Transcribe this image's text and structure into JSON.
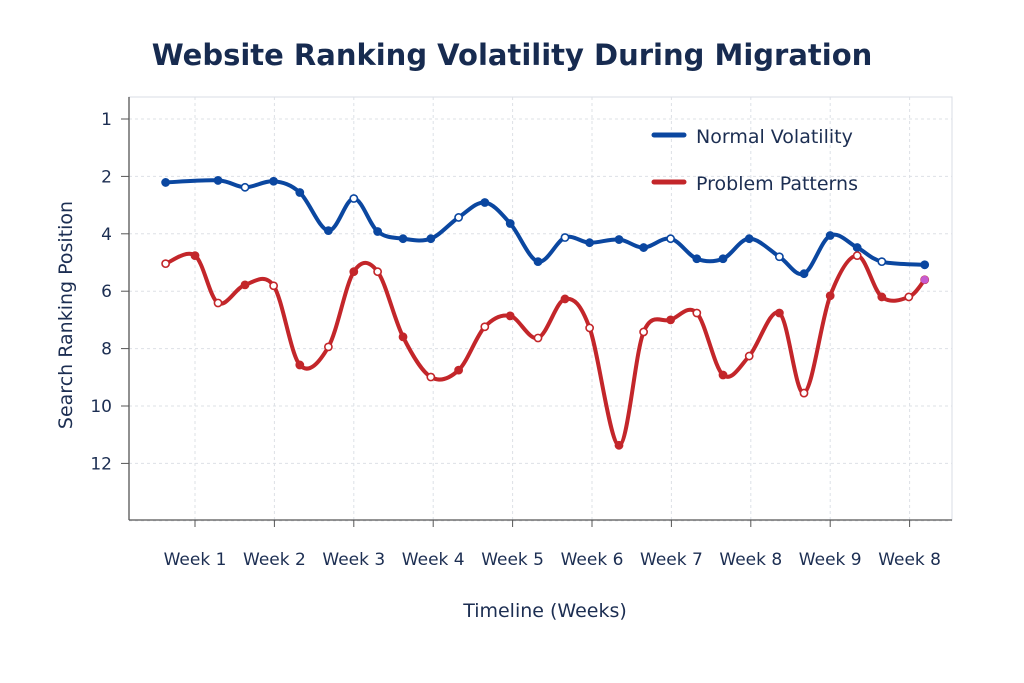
{
  "chart_data": {
    "type": "line",
    "title": "Website Ranking Volatility During Migration",
    "xlabel": "Timeline (Weeks)",
    "ylabel": "Search Ranking Position",
    "x_tick_labels": [
      "Week 1",
      "Week 2",
      "Week 3",
      "Week 4",
      "Week 5",
      "Week 6",
      "Week 7",
      "Week 8",
      "Week 9",
      "Week 8"
    ],
    "y_tick_labels": [
      "1",
      "2",
      "4",
      "6",
      "8",
      "10",
      "12"
    ],
    "y_inverted": true,
    "grid": true,
    "legend_position": "top-right",
    "colors": {
      "Normal Volatility": "#0b47a0",
      "Problem Patterns": "#c3262a",
      "text": "#1c2e52"
    },
    "series": [
      {
        "name": "Normal Volatility",
        "color": "#0b47a0",
        "x": [
          0.63,
          1.29,
          1.63,
          1.99,
          2.32,
          2.68,
          3.0,
          3.3,
          3.62,
          3.97,
          4.32,
          4.65,
          4.97,
          5.32,
          5.66,
          5.97,
          6.34,
          6.65,
          6.99,
          7.32,
          7.65,
          7.98,
          8.36,
          8.67,
          9.0,
          9.34,
          9.65,
          10.19
        ],
        "y": [
          2.21,
          2.14,
          2.38,
          2.17,
          2.56,
          3.89,
          2.77,
          3.92,
          4.17,
          4.17,
          3.43,
          2.91,
          3.64,
          4.97,
          4.13,
          4.31,
          4.2,
          4.48,
          4.17,
          4.87,
          4.87,
          4.17,
          4.8,
          5.39,
          4.06,
          4.48,
          4.97,
          5.08
        ]
      },
      {
        "name": "Problem Patterns",
        "color": "#c3262a",
        "x": [
          0.63,
          1.0,
          1.29,
          1.63,
          1.99,
          2.32,
          2.68,
          3.0,
          3.3,
          3.62,
          3.97,
          4.32,
          4.65,
          4.97,
          5.32,
          5.66,
          5.97,
          6.34,
          6.65,
          6.99,
          7.32,
          7.65,
          7.98,
          8.36,
          8.67,
          9.0,
          9.34,
          9.65,
          9.99,
          10.19
        ],
        "y": [
          5.04,
          4.76,
          6.41,
          5.78,
          5.81,
          8.57,
          7.94,
          5.32,
          5.32,
          7.59,
          8.99,
          8.75,
          7.24,
          6.86,
          7.63,
          6.27,
          7.28,
          11.37,
          7.42,
          7.0,
          6.76,
          8.92,
          8.26,
          6.76,
          9.55,
          6.16,
          4.76,
          6.2,
          6.2,
          5.6
        ]
      }
    ]
  }
}
